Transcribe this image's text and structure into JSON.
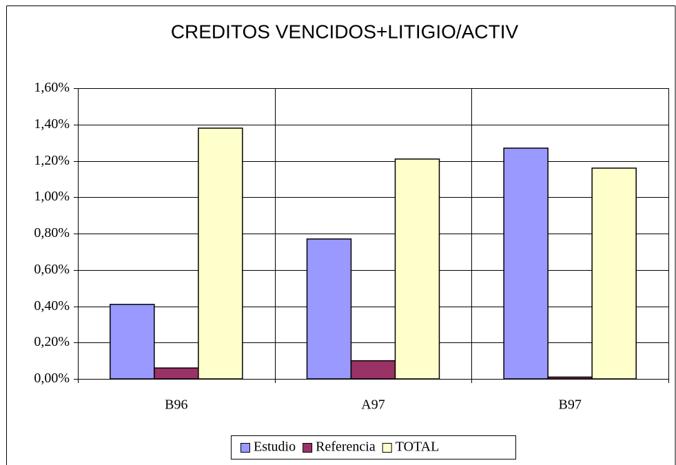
{
  "chart_data": {
    "type": "bar",
    "title": "CREDITOS VENCIDOS+LITIGIO/ACTIV",
    "categories": [
      "B96",
      "A97",
      "B97"
    ],
    "series": [
      {
        "name": "Estudio",
        "color": "#9999ff",
        "values": [
          0.41,
          0.77,
          1.27
        ]
      },
      {
        "name": "Referencia",
        "color": "#993366",
        "values": [
          0.06,
          0.1,
          0.01
        ]
      },
      {
        "name": "TOTAL",
        "color": "#ffffcc",
        "values": [
          1.38,
          1.21,
          1.16
        ]
      }
    ],
    "ylim": [
      0,
      1.6
    ],
    "yticks": [
      {
        "value": 0,
        "label": "0,00%"
      },
      {
        "value": 0.2,
        "label": "0,20%"
      },
      {
        "value": 0.4,
        "label": "0,40%"
      },
      {
        "value": 0.6,
        "label": "0,60%"
      },
      {
        "value": 0.8,
        "label": "0,80%"
      },
      {
        "value": 1.0,
        "label": "1,00%"
      },
      {
        "value": 1.2,
        "label": "1,20%"
      },
      {
        "value": 1.4,
        "label": "1,40%"
      },
      {
        "value": 1.6,
        "label": "1,60%"
      }
    ],
    "grid": true,
    "legend": "bottom"
  }
}
